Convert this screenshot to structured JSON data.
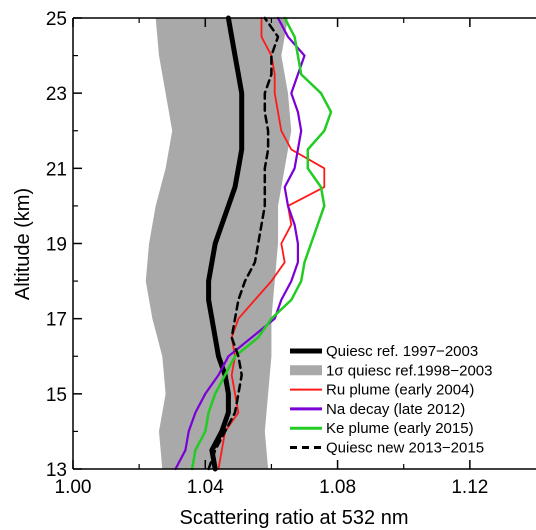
{
  "chart_data": {
    "type": "line",
    "xlabel": "Scattering ratio at 532 nm",
    "ylabel": "Altitude (km)",
    "xlim": [
      1.0,
      1.14
    ],
    "ylim": [
      13,
      25
    ],
    "xticks": [
      1.0,
      1.04,
      1.08,
      1.12
    ],
    "xtick_labels": [
      "1.00",
      "1.04",
      "1.08",
      "1.12"
    ],
    "yticks": [
      13,
      15,
      17,
      19,
      21,
      23,
      25
    ],
    "ytick_labels": [
      "13",
      "15",
      "17",
      "19",
      "21",
      "23",
      "25"
    ],
    "legend_position": "bottom-right",
    "band": {
      "name": "1σ  quiesc ref.1998−2003",
      "color": "#a9a9a9",
      "y": [
        13.0,
        14.0,
        15.0,
        16.0,
        17.0,
        18.0,
        19.0,
        20.0,
        21.0,
        22.0,
        23.0,
        24.0,
        25.0
      ],
      "lower": [
        1.027,
        1.026,
        1.028,
        1.027,
        1.024,
        1.022,
        1.023,
        1.025,
        1.028,
        1.03,
        1.028,
        1.026,
        1.025
      ],
      "upper": [
        1.059,
        1.058,
        1.059,
        1.06,
        1.06,
        1.061,
        1.062,
        1.062,
        1.064,
        1.066,
        1.065,
        1.063,
        1.065
      ]
    },
    "series": [
      {
        "name": "Quiesc ref. 1997−2003",
        "color": "#000000",
        "width": 5,
        "dash": "",
        "y": [
          13.0,
          13.5,
          14.0,
          14.5,
          15.0,
          15.5,
          16.0,
          16.5,
          17.0,
          17.5,
          18.0,
          18.5,
          19.0,
          19.5,
          20.0,
          20.5,
          21.0,
          21.5,
          22.0,
          22.5,
          23.0,
          23.5,
          24.0,
          24.5,
          25.0
        ],
        "x": [
          1.043,
          1.042,
          1.045,
          1.047,
          1.047,
          1.046,
          1.044,
          1.043,
          1.042,
          1.041,
          1.041,
          1.042,
          1.043,
          1.045,
          1.047,
          1.049,
          1.05,
          1.051,
          1.051,
          1.051,
          1.051,
          1.05,
          1.049,
          1.048,
          1.047
        ]
      },
      {
        "name": "Ru plume (early 2004)",
        "color": "#ff1a1a",
        "width": 1.8,
        "dash": "",
        "y": [
          13.0,
          13.5,
          14.0,
          14.5,
          15.0,
          15.5,
          16.0,
          16.5,
          17.0,
          17.5,
          18.0,
          18.5,
          19.0,
          19.5,
          20.0,
          20.5,
          21.0,
          21.5,
          22.0,
          22.5,
          23.0,
          23.5,
          24.0,
          24.5,
          25.0
        ],
        "x": [
          1.044,
          1.045,
          1.046,
          1.05,
          1.049,
          1.048,
          1.049,
          1.048,
          1.05,
          1.055,
          1.06,
          1.064,
          1.063,
          1.066,
          1.065,
          1.076,
          1.076,
          1.066,
          1.063,
          1.062,
          1.061,
          1.061,
          1.06,
          1.057,
          1.057
        ]
      },
      {
        "name": "Na decay (late 2012)",
        "color": "#7a00d6",
        "width": 2.2,
        "dash": "",
        "y": [
          13.0,
          13.5,
          14.0,
          14.5,
          15.0,
          15.5,
          16.0,
          16.5,
          17.0,
          17.5,
          18.0,
          18.5,
          19.0,
          19.5,
          20.0,
          20.5,
          21.0,
          21.5,
          22.0,
          22.5,
          23.0,
          23.5,
          24.0,
          24.5,
          25.0
        ],
        "x": [
          1.031,
          1.034,
          1.035,
          1.037,
          1.04,
          1.044,
          1.047,
          1.054,
          1.061,
          1.063,
          1.066,
          1.068,
          1.068,
          1.067,
          1.065,
          1.064,
          1.067,
          1.068,
          1.069,
          1.068,
          1.066,
          1.068,
          1.07,
          1.065,
          1.062
        ]
      },
      {
        "name": "Ke plume (early 2015)",
        "color": "#22cc22",
        "width": 2.5,
        "dash": "",
        "y": [
          13.0,
          13.5,
          14.0,
          14.5,
          15.0,
          15.5,
          16.0,
          16.5,
          17.0,
          17.5,
          18.0,
          18.5,
          19.0,
          19.5,
          20.0,
          20.5,
          21.0,
          21.5,
          22.0,
          22.5,
          23.0,
          23.5,
          24.0,
          24.5,
          25.0
        ],
        "x": [
          1.036,
          1.037,
          1.04,
          1.041,
          1.043,
          1.046,
          1.049,
          1.056,
          1.06,
          1.066,
          1.069,
          1.07,
          1.072,
          1.074,
          1.076,
          1.075,
          1.071,
          1.071,
          1.076,
          1.078,
          1.075,
          1.069,
          1.068,
          1.067,
          1.064
        ]
      },
      {
        "name": "Quiesc new 2013−2015",
        "color": "#000000",
        "width": 2.5,
        "dash": "7,5",
        "y": [
          13.0,
          13.5,
          14.0,
          14.5,
          15.0,
          15.5,
          16.0,
          16.5,
          17.0,
          17.5,
          18.0,
          18.5,
          19.0,
          19.5,
          20.0,
          20.5,
          21.0,
          21.5,
          22.0,
          22.5,
          23.0,
          23.5,
          24.0,
          24.5,
          25.0
        ],
        "x": [
          1.041,
          1.043,
          1.046,
          1.049,
          1.05,
          1.051,
          1.05,
          1.048,
          1.049,
          1.05,
          1.052,
          1.055,
          1.056,
          1.057,
          1.058,
          1.058,
          1.058,
          1.059,
          1.059,
          1.058,
          1.058,
          1.06,
          1.06,
          1.062,
          1.058
        ]
      }
    ],
    "legend": [
      {
        "label": "Quiesc ref. 1997−2003",
        "color": "#000000",
        "width": 5,
        "dash": ""
      },
      {
        "label": "1σ  quiesc ref.1998−2003",
        "color": "#a9a9a9",
        "width": 10,
        "dash": ""
      },
      {
        "label": "Ru plume (early 2004)",
        "color": "#ff1a1a",
        "width": 2,
        "dash": ""
      },
      {
        "label": "Na decay (late 2012)",
        "color": "#7a00d6",
        "width": 3,
        "dash": ""
      },
      {
        "label": "Ke plume (early 2015)",
        "color": "#22cc22",
        "width": 3,
        "dash": ""
      },
      {
        "label": "Quiesc new 2013−2015",
        "color": "#000000",
        "width": 3,
        "dash": "7,5"
      }
    ]
  }
}
